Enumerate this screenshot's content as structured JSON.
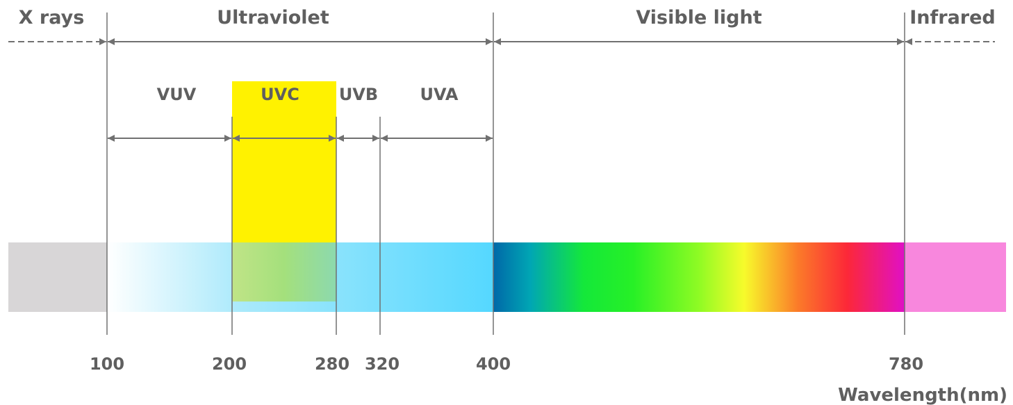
{
  "regions": {
    "xrays": "X rays",
    "ultraviolet": "Ultraviolet",
    "visible": "Visible light",
    "infrared": "Infrared"
  },
  "uv_bands": {
    "vuv": "VUV",
    "uvc": "UVC",
    "uvb": "UVB",
    "uva": "UVA"
  },
  "ticks": [
    "100",
    "200",
    "280",
    "320",
    "400",
    "780"
  ],
  "axis_label": "Wavelength(nm)",
  "colors": {
    "label": "#5f5f5f",
    "line": "#707070",
    "uvc_highlight": "#fff200",
    "xray_band": "#d8d6d7",
    "infrared_band": "#f887dd"
  }
}
